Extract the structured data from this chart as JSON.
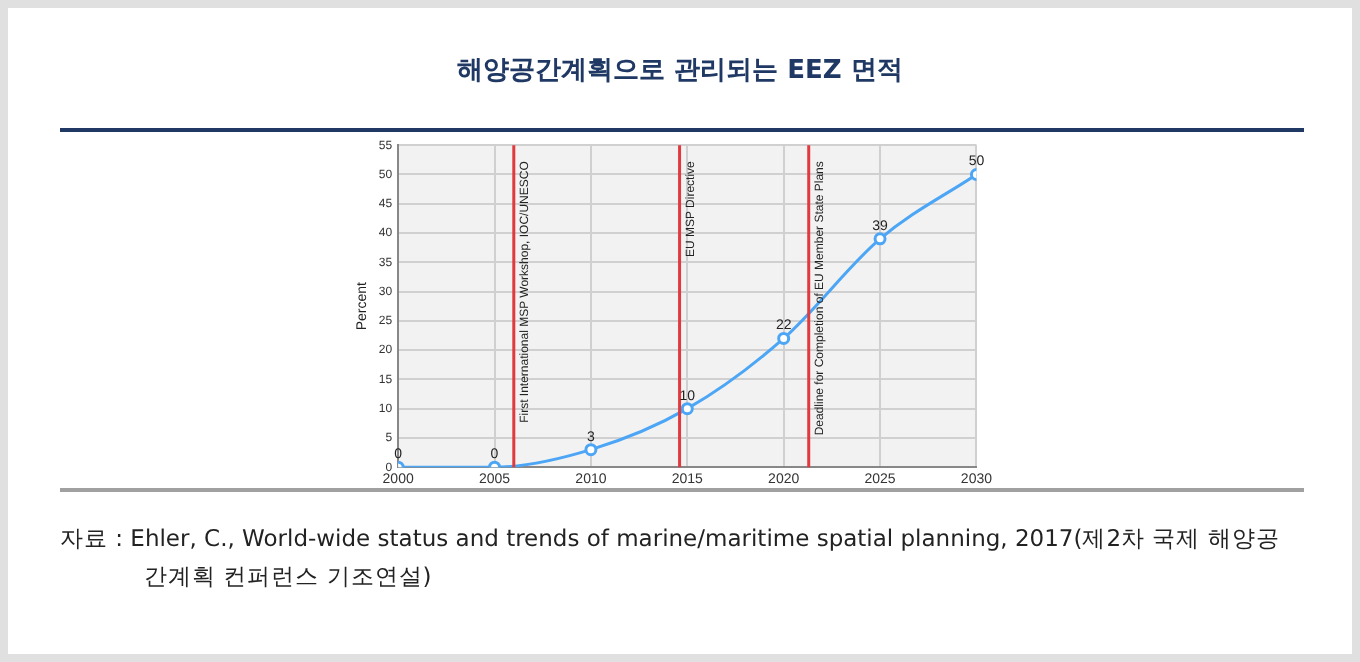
{
  "chart_data": {
    "type": "line",
    "title": "해양공간계획으로 관리되는 EEZ 면적",
    "ylabel": "Percent",
    "x": [
      2000,
      2005,
      2010,
      2015,
      2020,
      2025,
      2030
    ],
    "series": [
      {
        "color": "#4da6f5",
        "values": [
          0,
          0,
          3,
          10,
          22,
          39,
          50
        ]
      }
    ],
    "xlim": [
      2000,
      2030
    ],
    "xticks": [
      2000,
      2005,
      2010,
      2015,
      2020,
      2025,
      2030
    ],
    "ylim": [
      0,
      55
    ],
    "yticks": [
      0,
      5,
      10,
      15,
      20,
      25,
      30,
      35,
      40,
      45,
      50,
      55
    ],
    "grid": true,
    "legend": false,
    "marker": "circle",
    "line_style": "solid",
    "data_labels": true,
    "ref_lines": [
      {
        "axis": "x",
        "value": 2006,
        "label": "First International MSP Workshop, IOC/UNESCO",
        "color": "#e0393e"
      },
      {
        "axis": "x",
        "value": 2014.6,
        "label": "EU MSP Directive",
        "color": "#e0393e"
      },
      {
        "axis": "x",
        "value": 2021.3,
        "label": "Deadline for Completion of EU Member State Plans",
        "color": "#e0393e"
      }
    ],
    "annotations": [
      "자료 : Ehler, C., World-wide status and trends of marine/maritime spatial planning, 2017(제2차 국제 해양공간계획 컨퍼런스 기조연설)"
    ]
  }
}
